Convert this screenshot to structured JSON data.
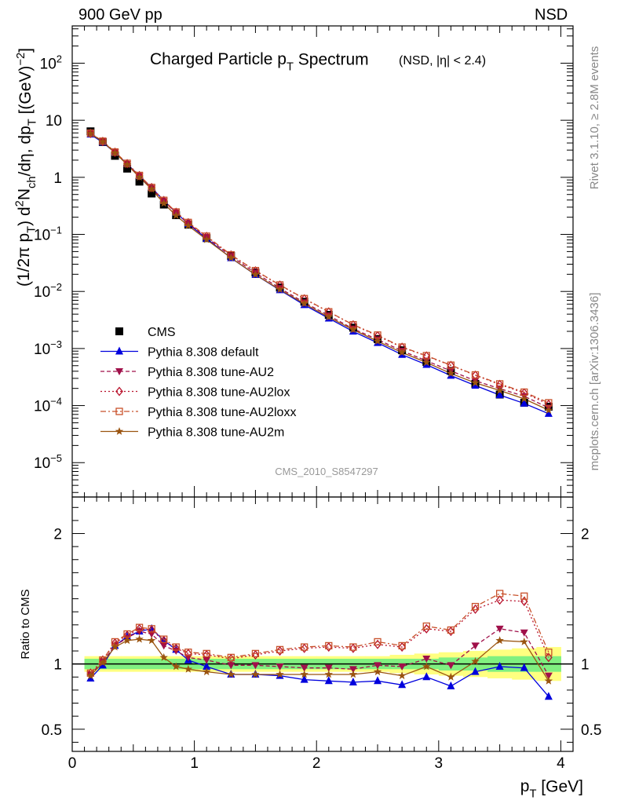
{
  "header": {
    "left": "900 GeV pp",
    "right": "NSD"
  },
  "side": {
    "rivet": "Rivet 3.1.10, ≥ 2.8M events",
    "mcplots": "mcplots.cern.ch [arXiv:1306.3436]"
  },
  "watermark": "CMS_2010_S8547297",
  "colors": {
    "cms": "#000000",
    "default": "#0000dd",
    "au2": "#a0104a",
    "au2lox": "#b8102a",
    "au2loxx": "#c8502a",
    "au2m": "#9a5410",
    "band_green": "#80f080",
    "band_yellow": "#ffff80"
  },
  "chart_data": [
    {
      "type": "scatter",
      "title": "Charged Particle p_T Spectrum",
      "title_sub": "(NSD, |η| < 2.4)",
      "ylabel": "(1/2π p_T) d²N_ch/dη, dp_T [(GeV)⁻²]",
      "yscale": "log",
      "ylim": [
        2.5e-06,
        450
      ],
      "xlim": [
        0,
        4.1
      ],
      "y_ticks": [
        "10⁻⁵",
        "10⁻⁴",
        "10⁻³",
        "10⁻²",
        "10⁻¹",
        "1",
        "10",
        "10²"
      ],
      "legend_position": "middle-left",
      "x": [
        0.15,
        0.25,
        0.35,
        0.45,
        0.55,
        0.65,
        0.75,
        0.85,
        0.95,
        1.1,
        1.3,
        1.5,
        1.7,
        1.9,
        2.1,
        2.3,
        2.5,
        2.7,
        2.9,
        3.1,
        3.3,
        3.5,
        3.7,
        3.9
      ],
      "series": [
        {
          "name": "CMS",
          "color": "#000000",
          "marker": "square",
          "line": "none",
          "values": [
            6.4,
            4.15,
            2.38,
            1.42,
            0.84,
            0.52,
            0.333,
            0.217,
            0.148,
            0.086,
            0.042,
            0.0214,
            0.0117,
            0.0066,
            0.00388,
            0.00232,
            0.00146,
            0.00093,
            0.00058,
            0.000405,
            0.00024,
            0.000156,
            0.000112,
            9.55e-05
          ]
        },
        {
          "name": "Pythia 8.308 default",
          "color": "#0000dd",
          "marker": "triangle-up",
          "line": "solid",
          "values": [
            5.65,
            4.1,
            2.7,
            1.72,
            1.05,
            0.66,
            0.392,
            0.241,
            0.152,
            0.0845,
            0.0385,
            0.0196,
            0.0106,
            0.0058,
            0.00338,
            0.00199,
            0.00126,
            0.00078,
            0.00052,
            0.000335,
            0.000225,
            0.000153,
            0.000109,
            7.2e-05
          ]
        },
        {
          "name": "Pythia 8.308 tune-AU2",
          "color": "#a0104a",
          "marker": "triangle-down",
          "line": "dashed",
          "values": [
            5.9,
            4.25,
            2.72,
            1.7,
            1.05,
            0.64,
            0.38,
            0.24,
            0.155,
            0.089,
            0.0415,
            0.0211,
            0.0114,
            0.0064,
            0.00378,
            0.00222,
            0.00144,
            0.00091,
            0.00061,
            0.000405,
            0.000273,
            0.000198,
            0.000146,
            9.15e-05
          ]
        },
        {
          "name": "Pythia 8.308 tune-AU2lox",
          "color": "#b8102a",
          "marker": "diamond-open",
          "line": "dotted",
          "values": [
            5.9,
            4.25,
            2.75,
            1.74,
            1.07,
            0.66,
            0.39,
            0.244,
            0.16,
            0.092,
            0.0435,
            0.0229,
            0.0129,
            0.0074,
            0.00438,
            0.00259,
            0.00167,
            0.00105,
            0.00074,
            0.000505,
            0.00034,
            0.000234,
            0.000167,
            0.000105
          ]
        },
        {
          "name": "Pythia 8.308 tune-AU2loxx",
          "color": "#c8502a",
          "marker": "square-open",
          "line": "dashdot",
          "values": [
            5.95,
            4.3,
            2.78,
            1.76,
            1.08,
            0.665,
            0.395,
            0.247,
            0.162,
            0.093,
            0.0438,
            0.0232,
            0.013,
            0.0075,
            0.0044,
            0.00261,
            0.00172,
            0.00106,
            0.00075,
            0.00051,
            0.000345,
            0.00024,
            0.000172,
            0.000112
          ]
        },
        {
          "name": "Pythia 8.308 tune-AU2m",
          "color": "#9a5410",
          "marker": "star",
          "line": "solid",
          "values": [
            5.85,
            4.2,
            2.68,
            1.67,
            1.0,
            0.62,
            0.35,
            0.214,
            0.142,
            0.081,
            0.0388,
            0.0197,
            0.0108,
            0.0061,
            0.00355,
            0.00214,
            0.00134,
            0.00085,
            0.00057,
            0.000365,
            0.00025,
            0.000184,
            0.000131,
            8.3e-05
          ]
        }
      ]
    },
    {
      "type": "line",
      "ylabel": "Ratio to CMS",
      "xlabel": "p_T [GeV]",
      "ylim": [
        0.33,
        2.28
      ],
      "xlim": [
        0,
        4.1
      ],
      "y_ticks": [
        "0.5",
        "1",
        "2"
      ],
      "x_ticks": [
        "0",
        "1",
        "2",
        "3",
        "4"
      ],
      "reference_line": 1,
      "x": [
        0.15,
        0.25,
        0.35,
        0.45,
        0.55,
        0.65,
        0.75,
        0.85,
        0.95,
        1.1,
        1.3,
        1.5,
        1.7,
        1.9,
        2.1,
        2.3,
        2.5,
        2.7,
        2.9,
        3.1,
        3.3,
        3.5,
        3.7,
        3.9
      ],
      "bands": {
        "green_half_width": [
          0.04,
          0.04,
          0.04,
          0.04,
          0.04,
          0.04,
          0.04,
          0.04,
          0.04,
          0.04,
          0.04,
          0.04,
          0.04,
          0.04,
          0.04,
          0.04,
          0.04,
          0.04,
          0.04,
          0.05,
          0.05,
          0.06,
          0.06,
          0.06
        ],
        "yellow_half_width": [
          0.06,
          0.06,
          0.06,
          0.06,
          0.06,
          0.06,
          0.06,
          0.06,
          0.06,
          0.06,
          0.06,
          0.06,
          0.06,
          0.06,
          0.06,
          0.06,
          0.06,
          0.07,
          0.08,
          0.09,
          0.1,
          0.11,
          0.12,
          0.13
        ]
      },
      "series": [
        {
          "name": "Pythia 8.308 default",
          "color": "#0000dd",
          "marker": "triangle-up",
          "line": "solid",
          "values": [
            0.89,
            0.99,
            1.14,
            1.21,
            1.25,
            1.27,
            1.18,
            1.11,
            1.03,
            0.98,
            0.92,
            0.92,
            0.91,
            0.88,
            0.87,
            0.86,
            0.87,
            0.84,
            0.9,
            0.83,
            0.94,
            0.98,
            0.97,
            0.75
          ]
        },
        {
          "name": "Pythia 8.308 tune-AU2",
          "color": "#a0104a",
          "marker": "triangle-down",
          "line": "dashed",
          "values": [
            0.92,
            1.02,
            1.14,
            1.2,
            1.25,
            1.23,
            1.14,
            1.1,
            1.05,
            1.03,
            0.99,
            0.99,
            0.98,
            0.97,
            0.97,
            0.96,
            0.99,
            0.98,
            1.04,
            0.99,
            1.14,
            1.27,
            1.24,
            0.91
          ]
        },
        {
          "name": "Pythia 8.308 tune-AU2lox",
          "color": "#b8102a",
          "marker": "diamond-open",
          "line": "dotted",
          "values": [
            0.93,
            1.03,
            1.16,
            1.22,
            1.27,
            1.26,
            1.18,
            1.12,
            1.08,
            1.07,
            1.04,
            1.07,
            1.1,
            1.12,
            1.13,
            1.12,
            1.15,
            1.13,
            1.27,
            1.25,
            1.42,
            1.49,
            1.48,
            1.05
          ]
        },
        {
          "name": "Pythia 8.308 tune-AU2loxx",
          "color": "#c8502a",
          "marker": "square-open",
          "line": "dashdot",
          "values": [
            0.93,
            1.03,
            1.17,
            1.23,
            1.28,
            1.27,
            1.19,
            1.13,
            1.09,
            1.08,
            1.05,
            1.08,
            1.11,
            1.13,
            1.14,
            1.13,
            1.17,
            1.14,
            1.29,
            1.26,
            1.44,
            1.54,
            1.52,
            1.09
          ]
        },
        {
          "name": "Pythia 8.308 tune-AU2m",
          "color": "#9a5410",
          "marker": "star",
          "line": "solid",
          "values": [
            0.91,
            1.01,
            1.13,
            1.18,
            1.19,
            1.18,
            1.05,
            0.98,
            0.96,
            0.94,
            0.92,
            0.92,
            0.92,
            0.92,
            0.92,
            0.92,
            0.94,
            0.91,
            0.98,
            0.9,
            1.02,
            1.18,
            1.17,
            0.87
          ]
        }
      ]
    }
  ]
}
